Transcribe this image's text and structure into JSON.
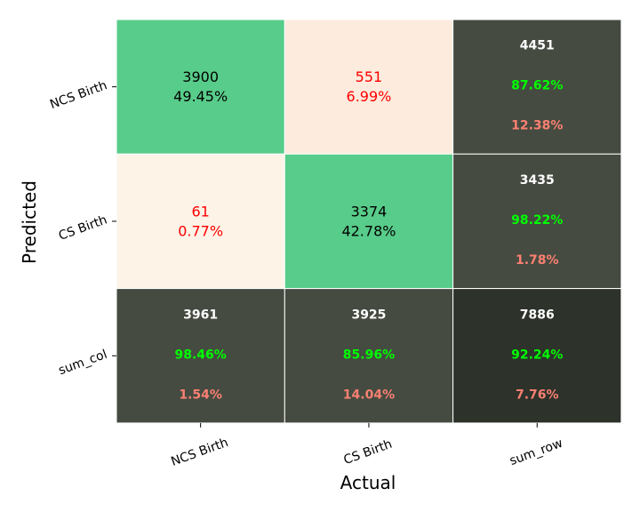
{
  "chart_data": {
    "type": "heatmap",
    "title": "",
    "xlabel": "Actual",
    "ylabel": "Predicted",
    "x_tick_labels": [
      "NCS Birth",
      "CS Birth",
      "sum_row"
    ],
    "y_tick_labels": [
      "NCS Birth",
      "CS Birth",
      "sum_col"
    ],
    "cells": [
      [
        {
          "kind": "value",
          "count": "3900",
          "pct": "49.45%",
          "fill": "#58cc8a",
          "text_color": "#000000"
        },
        {
          "kind": "value",
          "count": "551",
          "pct": "6.99%",
          "fill": "#fdebdd",
          "text_color": "#ff0000"
        },
        {
          "kind": "summary",
          "count": "4451",
          "good": "87.62%",
          "bad": "12.38%",
          "fill": "#454b40"
        }
      ],
      [
        {
          "kind": "value",
          "count": "61",
          "pct": "0.77%",
          "fill": "#fef3e7",
          "text_color": "#ff0000"
        },
        {
          "kind": "value",
          "count": "3374",
          "pct": "42.78%",
          "fill": "#58cc8a",
          "text_color": "#000000"
        },
        {
          "kind": "summary",
          "count": "3435",
          "good": "98.22%",
          "bad": "1.78%",
          "fill": "#454b40"
        }
      ],
      [
        {
          "kind": "summary",
          "count": "3961",
          "good": "98.46%",
          "bad": "1.54%",
          "fill": "#454b40"
        },
        {
          "kind": "summary",
          "count": "3925",
          "good": "85.96%",
          "bad": "14.04%",
          "fill": "#454b40"
        },
        {
          "kind": "summary",
          "count": "7886",
          "good": "92.24%",
          "bad": "7.76%",
          "fill": "#2d322a"
        }
      ]
    ],
    "colors": {
      "good_text": "#00ff00",
      "bad_text": "#fa8072",
      "summary_count_text": "#ffffff"
    }
  }
}
